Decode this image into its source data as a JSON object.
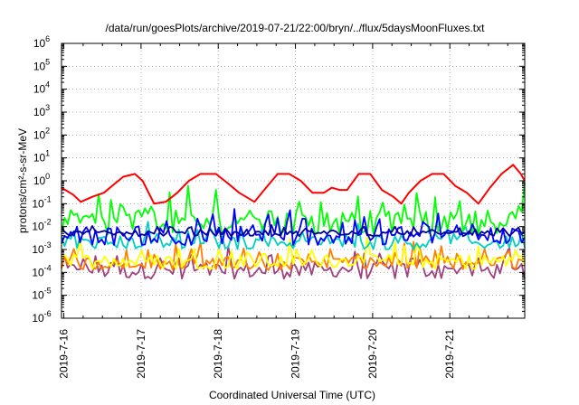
{
  "chart_data": {
    "type": "line",
    "title": "/data/run/goesPlots/archive/2019-07-21/22:00/bryn/../flux/5daysMoonFluxes.txt",
    "xlabel": "Coordinated Universal Time (UTC)",
    "ylabel": "protons/cm²-s-sr-MeV",
    "yscale": "log",
    "ylim": [
      1e-06,
      1000000.0
    ],
    "xlim": [
      "2019-07-16",
      "2019-07-22T00:00"
    ],
    "xticks": [
      "2019-7-16",
      "2019-7-17",
      "2019-7-18",
      "2019-7-19",
      "2019-7-20",
      "2019-7-21"
    ],
    "yticks": [
      "10-6",
      "10-5",
      "10-4",
      "10-3",
      "10-2",
      "10-1",
      "100",
      "101",
      "102",
      "103",
      "104",
      "105",
      "106"
    ],
    "grid": true,
    "series": [
      {
        "color": "#ff0000",
        "x_days": [
          0,
          0.15,
          0.25,
          0.4,
          0.55,
          0.7,
          0.8,
          0.95,
          1.05,
          1.2,
          1.35,
          1.5,
          1.65,
          1.8,
          2.0,
          2.15,
          2.3,
          2.5,
          2.65,
          2.8,
          2.95,
          3.1,
          3.25,
          3.4,
          3.5,
          3.6,
          3.7,
          3.85,
          4.0,
          4.15,
          4.3,
          4.4,
          4.5,
          4.65,
          4.8,
          4.95,
          5.1,
          5.25,
          5.4,
          5.55,
          5.7,
          5.85,
          5.95,
          6.0
        ],
        "values": [
          0.5,
          0.25,
          0.12,
          0.2,
          0.3,
          0.8,
          1.5,
          2.0,
          1.0,
          0.1,
          0.12,
          0.3,
          1.0,
          2.0,
          2.0,
          0.8,
          0.3,
          0.12,
          0.5,
          2.0,
          2.0,
          1.0,
          0.3,
          0.3,
          0.5,
          0.4,
          0.4,
          2.0,
          2.0,
          0.4,
          0.2,
          0.1,
          0.3,
          1.0,
          2.0,
          2.0,
          0.6,
          0.3,
          0.1,
          0.5,
          2.0,
          5.0,
          2.0,
          1.0
        ]
      },
      {
        "color": "#00ff00",
        "level": 0.015,
        "spread": 1.8
      },
      {
        "color": "#00d0c0",
        "level": 0.002,
        "spread": 1.0
      },
      {
        "color": "#0000ff",
        "level": 0.004,
        "spread": 1.4
      },
      {
        "color": "#0000a0",
        "level": 0.005,
        "spread": 0.4
      },
      {
        "color": "#ffff00",
        "level": 0.0003,
        "spread": 1.1
      },
      {
        "color": "#ff8000",
        "level": 0.00025,
        "spread": 1.0
      },
      {
        "color": "#a04080",
        "level": 0.00012,
        "spread": 1.2
      }
    ]
  }
}
